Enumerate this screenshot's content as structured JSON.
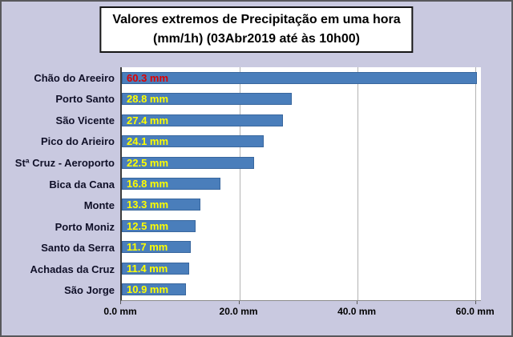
{
  "title": {
    "line1": "Valores extremos de Precipitação em uma hora",
    "line2": "(mm/1h) (03Abr2019 até às 10h00)"
  },
  "chart_data": {
    "type": "bar",
    "orientation": "horizontal",
    "title": "Valores extremos de Precipitação em uma hora (mm/1h) (03Abr2019 até às 10h00)",
    "categories": [
      "Chão do Areeiro",
      "Porto Santo",
      "São Vicente",
      "Pico do Arieiro",
      "Stª Cruz - Aeroporto",
      "Bica da Cana",
      "Monte",
      "Porto Moniz",
      "Santo da Serra",
      "Achadas da Cruz",
      "São Jorge"
    ],
    "values": [
      60.3,
      28.8,
      27.4,
      24.1,
      22.5,
      16.8,
      13.3,
      12.5,
      11.7,
      11.4,
      10.9
    ],
    "value_labels": [
      "60.3 mm",
      "28.8 mm",
      "27.4 mm",
      "24.1 mm",
      "22.5 mm",
      "16.8 mm",
      "13.3 mm",
      "12.5 mm",
      "11.7 mm",
      "11.4 mm",
      "10.9 mm"
    ],
    "value_label_colors": [
      "#e00000",
      "#ffff00",
      "#ffff00",
      "#ffff00",
      "#ffff00",
      "#ffff00",
      "#ffff00",
      "#ffff00",
      "#ffff00",
      "#ffff00",
      "#ffff00"
    ],
    "x_ticks": [
      {
        "value": 0,
        "label": "0.0 mm"
      },
      {
        "value": 20,
        "label": "20.0 mm"
      },
      {
        "value": 40,
        "label": "40.0 mm"
      },
      {
        "value": 60,
        "label": "60.0 mm"
      }
    ],
    "xlim": [
      0,
      61
    ],
    "grid": true,
    "legend": false,
    "colors": {
      "bar": "#4a7ebb",
      "background": "#c9c9e0",
      "plot_background": "#ffffff",
      "gridline": "#b3b3b3"
    }
  }
}
